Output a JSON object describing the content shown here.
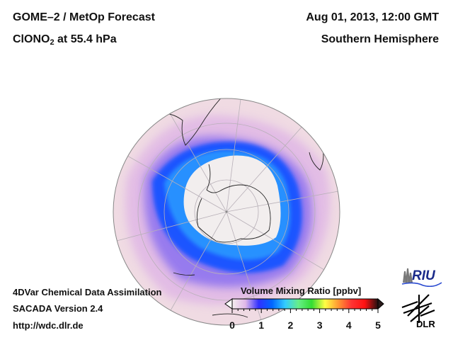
{
  "header": {
    "title_line1": "GOME–2 / MetOp Forecast",
    "species_main": "ClONO",
    "species_sub": "2",
    "species_rest": " at 55.4 hPa",
    "date": "Aug 01, 2013, 12:00 GMT",
    "region": "Southern Hemisphere"
  },
  "footer": {
    "line1": "4DVar Chemical Data Assimilation",
    "line2": "SACADA Version 2.4",
    "line3": "http://wdc.dlr.de"
  },
  "map": {
    "projection": "orthographic",
    "center": "South Pole",
    "features": [
      "continent outlines",
      "graticule",
      "polar vortex ring"
    ],
    "ring_color": "#1a4cff",
    "background_color": "#f0d8e0",
    "core_color": "#f2eeee"
  },
  "colorbar": {
    "label": "Volume Mixing Ratio [ppbv]",
    "ticks": [
      "0",
      "1",
      "2",
      "3",
      "4",
      "5"
    ],
    "min": 0,
    "max": 5,
    "extend": "both",
    "stops": [
      "#f5eef0",
      "#e0b8e8",
      "#3030ff",
      "#0066ff",
      "#33ccff",
      "#66ee88",
      "#33dd33",
      "#ffff44",
      "#ff9933",
      "#ff3333",
      "#ff1111",
      "#221111"
    ]
  },
  "logos": {
    "riu": "RIU",
    "dlr": "DLR"
  }
}
